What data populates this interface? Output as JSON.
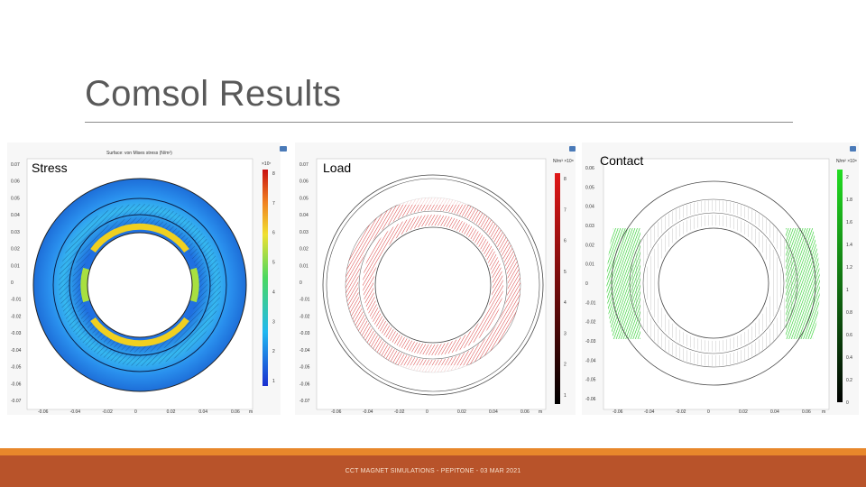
{
  "slide": {
    "title": "Comsol Results",
    "footer": "CCT MAGNET SIMULATIONS - PEPITONE - 03 MAR 2021"
  },
  "panels": [
    {
      "label": "Stress",
      "plot_title": "Surface: von Mises stress (N/m²)",
      "colorbar_unit": "×10⁷",
      "colorbar_ticks": [
        "8",
        "7",
        "6",
        "5",
        "4",
        "3",
        "2",
        "1"
      ],
      "y_ticks": [
        "0.07",
        "0.06",
        "0.05",
        "0.04",
        "0.03",
        "0.02",
        "0.01",
        "0",
        "-0.01",
        "-0.02",
        "-0.03",
        "-0.04",
        "-0.05",
        "-0.06",
        "-0.07"
      ],
      "x_ticks": [
        "-0.06",
        "-0.04",
        "-0.02",
        "0",
        "0.02",
        "0.04",
        "0.06"
      ],
      "x_unit": "m"
    },
    {
      "label": "Load",
      "colorbar_unit": "N/m³ ×10⁸",
      "colorbar_ticks": [
        "8",
        "7",
        "6",
        "5",
        "4",
        "3",
        "2",
        "1"
      ],
      "y_ticks": [
        "0.07",
        "0.06",
        "0.05",
        "0.04",
        "0.03",
        "0.02",
        "0.01",
        "0",
        "-0.01",
        "-0.02",
        "-0.03",
        "-0.04",
        "-0.05",
        "-0.06",
        "-0.07"
      ],
      "x_ticks": [
        "-0.06",
        "-0.04",
        "-0.02",
        "0",
        "0.02",
        "0.04",
        "0.06"
      ],
      "x_unit": "m"
    },
    {
      "label": "Contact",
      "colorbar_unit": "N/m² ×10⁸",
      "colorbar_ticks": [
        "2",
        "1.8",
        "1.6",
        "1.4",
        "1.2",
        "1",
        "0.8",
        "0.6",
        "0.4",
        "0.2",
        "0"
      ],
      "y_ticks": [
        "0.06",
        "0.05",
        "0.04",
        "0.03",
        "0.02",
        "0.01",
        "0",
        "-0.01",
        "-0.02",
        "-0.03",
        "-0.04",
        "-0.05",
        "-0.06"
      ],
      "x_ticks": [
        "-0.06",
        "-0.04",
        "-0.02",
        "0",
        "0.02",
        "0.04",
        "0.06"
      ],
      "x_unit": "m"
    }
  ],
  "colors": {
    "footer_band": "#b8532a",
    "footer_stripe": "#e8872b",
    "load_color": "#d42020",
    "contact_color": "#1fcc1f"
  }
}
